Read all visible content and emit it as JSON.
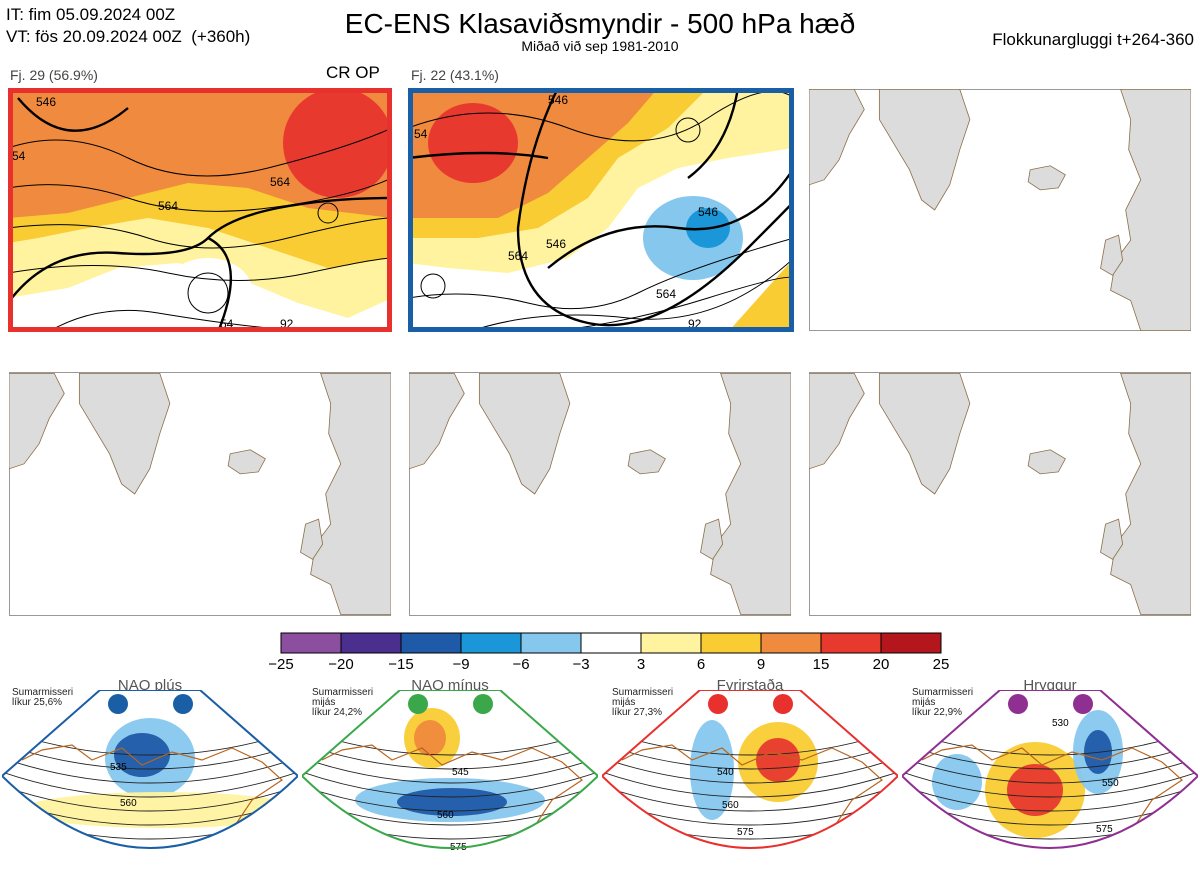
{
  "header": {
    "it_line": "IT: fim 05.09.2024 00Z",
    "vt_line": "VT: fös 20.09.2024 00Z  (+360h)",
    "title": "EC-ENS Klasaviðsmyndir - 500 hPa hæð",
    "subtitle": "Miðað við sep 1981-2010",
    "window": "Flokkunargluggi t+264-360"
  },
  "panels": [
    {
      "label": "Fj. 29 (56.9%)",
      "tag": "CR OP",
      "frame_color": "#e8302d",
      "contour_labels": [
        "546",
        "54",
        "564",
        "564",
        "54",
        "92"
      ]
    },
    {
      "label": "Fj. 22 (43.1%)",
      "tag": "",
      "frame_color": "#1a5ea6",
      "contour_labels": [
        "546",
        "54",
        "546",
        "564",
        "546",
        "564",
        "92"
      ]
    }
  ],
  "colorbar": {
    "ticks": [
      "−25",
      "−20",
      "−15",
      "−9",
      "−6",
      "−3",
      "3",
      "6",
      "9",
      "15",
      "20",
      "25"
    ],
    "colors": [
      "#8c4f9f",
      "#4a2f8f",
      "#1f5aa8",
      "#1b97d9",
      "#86c7ee",
      "#ffffff",
      "#fff3a0",
      "#f9cc33",
      "#f08a3e",
      "#e8392f",
      "#b3161c"
    ]
  },
  "regimes": [
    {
      "title": "NAO plús",
      "note": "Sumarmisseri\nlíkur 25,6%",
      "color": "#1a5ea6",
      "contour_labels": [
        "535",
        "560"
      ]
    },
    {
      "title": "NAO mínus",
      "note": "Sumarmisseri\nmijás\nlíkur 24,2%",
      "color": "#3aa84a",
      "contour_labels": [
        "545",
        "560",
        "575"
      ]
    },
    {
      "title": "Fyrirstaða",
      "note": "Sumarmisseri\nmijás\nlíkur 27,3%",
      "color": "#e8302d",
      "contour_labels": [
        "540",
        "560",
        "575"
      ]
    },
    {
      "title": "Hryggur",
      "note": "Sumarmisseri\nmijás\nlíkur 22,9%",
      "color": "#8f2f91",
      "contour_labels": [
        "530",
        "550",
        "575"
      ]
    }
  ]
}
